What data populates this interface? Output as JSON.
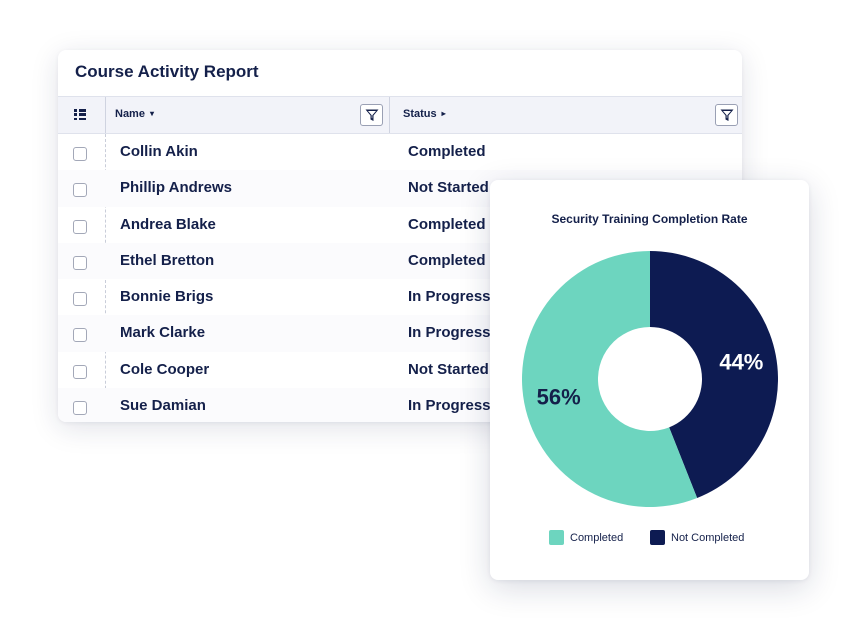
{
  "report": {
    "title": "Course Activity Report",
    "columns": {
      "name": "Name",
      "name_sort": "▾",
      "status": "Status",
      "status_sort": "▸"
    },
    "rows": [
      {
        "name": "Collin Akin",
        "status": "Completed"
      },
      {
        "name": "Phillip Andrews",
        "status": "Not Started"
      },
      {
        "name": "Andrea Blake",
        "status": "Completed"
      },
      {
        "name": "Ethel Bretton",
        "status": "Completed"
      },
      {
        "name": "Bonnie Brigs",
        "status": "In Progress"
      },
      {
        "name": "Mark Clarke",
        "status": "In Progress"
      },
      {
        "name": "Cole Cooper",
        "status": "Not Started"
      },
      {
        "name": "Sue Damian",
        "status": "In Progress"
      }
    ]
  },
  "chart_data": {
    "type": "pie",
    "title": "Security Training Completion Rate",
    "categories": [
      "Completed",
      "Not Completed"
    ],
    "values": [
      56,
      44
    ],
    "data_labels": [
      "56%",
      "44%"
    ],
    "colors": [
      "#6dd5bf",
      "#0d1b52"
    ],
    "donut": true,
    "legend": "bottom"
  }
}
